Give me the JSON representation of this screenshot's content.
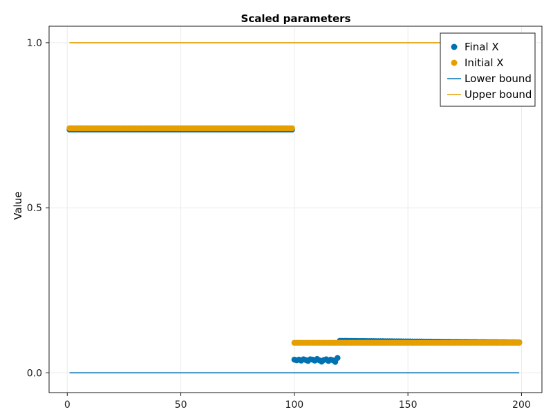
{
  "chart_data": {
    "type": "scatter",
    "title": "Scaled parameters",
    "xlabel": "",
    "ylabel": "Value",
    "xlim": [
      -8,
      209
    ],
    "ylim": [
      -0.06,
      1.05
    ],
    "xticks": [
      0,
      50,
      100,
      150,
      200
    ],
    "xtick_labels": [
      "0",
      "50",
      "100",
      "150",
      "200"
    ],
    "yticks": [
      0.0,
      0.5,
      1.0
    ],
    "ytick_labels": [
      "0.0",
      "0.5",
      "1.0"
    ],
    "grid": true,
    "legend_position": "top-right",
    "colors": {
      "final": "#0072b2",
      "initial": "#e69f00"
    },
    "series": [
      {
        "name": "Final X",
        "kind": "scatter",
        "color": "#0072b2",
        "segments": [
          {
            "x_start": 1,
            "x_end": 99,
            "y": 0.737
          },
          {
            "x_start": 120,
            "x_end": 199,
            "y": 0.097,
            "y_end": 0.092
          }
        ],
        "noisy_points": [
          [
            100,
            0.04
          ],
          [
            101,
            0.038
          ],
          [
            102,
            0.04
          ],
          [
            103,
            0.037
          ],
          [
            104,
            0.041
          ],
          [
            105,
            0.039
          ],
          [
            106,
            0.036
          ],
          [
            107,
            0.041
          ],
          [
            108,
            0.04
          ],
          [
            109,
            0.037
          ],
          [
            110,
            0.042
          ],
          [
            111,
            0.038
          ],
          [
            112,
            0.034
          ],
          [
            113,
            0.039
          ],
          [
            114,
            0.041
          ],
          [
            115,
            0.036
          ],
          [
            116,
            0.04
          ],
          [
            117,
            0.038
          ],
          [
            118,
            0.033
          ],
          [
            119,
            0.045
          ]
        ]
      },
      {
        "name": "Initial X",
        "kind": "scatter",
        "color": "#e69f00",
        "segments": [
          {
            "x_start": 1,
            "x_end": 99,
            "y": 0.741
          },
          {
            "x_start": 100,
            "x_end": 199,
            "y": 0.091
          }
        ]
      },
      {
        "name": "Lower bound",
        "kind": "line",
        "color": "#0072b2",
        "x": [
          1,
          199
        ],
        "y": [
          0.0,
          0.0
        ]
      },
      {
        "name": "Upper bound",
        "kind": "line",
        "color": "#e69f00",
        "x": [
          1,
          199
        ],
        "y": [
          1.0,
          1.0
        ]
      }
    ]
  }
}
